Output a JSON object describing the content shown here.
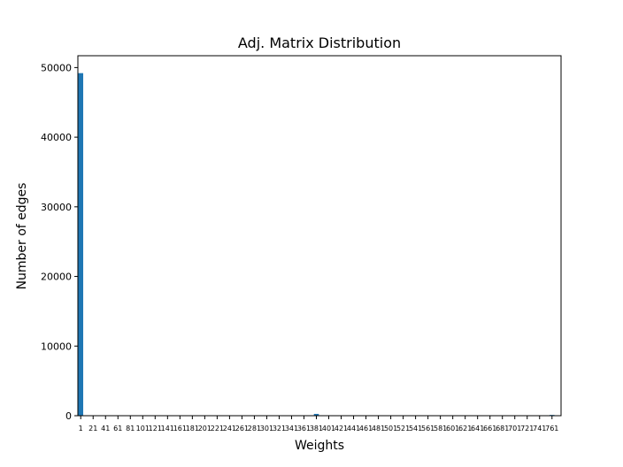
{
  "chart_data": {
    "type": "bar",
    "title": "Adj. Matrix Distribution",
    "xlabel": "Weights",
    "ylabel": "Number of edges",
    "ylim": [
      0,
      51700
    ],
    "xlim": [
      -3.6,
      775.6
    ],
    "yticks": [
      0,
      10000,
      20000,
      30000,
      40000,
      50000
    ],
    "xticks": [
      1,
      21,
      41,
      61,
      81,
      101,
      121,
      141,
      161,
      181,
      201,
      221,
      241,
      261,
      281,
      301,
      321,
      341,
      361,
      381,
      401,
      421,
      441,
      461,
      481,
      501,
      521,
      541,
      561,
      581,
      601,
      621,
      641,
      661,
      681,
      701,
      721,
      741,
      761
    ],
    "bar_width": 8,
    "x": [
      1,
      21,
      41,
      61,
      81,
      101,
      121,
      141,
      161,
      181,
      201,
      221,
      241,
      261,
      281,
      301,
      321,
      341,
      361,
      381,
      401,
      421,
      441,
      461,
      481,
      501,
      521,
      541,
      561,
      581,
      601,
      621,
      641,
      661,
      681,
      701,
      721,
      741,
      761
    ],
    "values": [
      49200,
      0,
      0,
      0,
      0,
      0,
      0,
      0,
      0,
      0,
      0,
      0,
      0,
      0,
      0,
      0,
      0,
      0,
      0,
      260,
      0,
      0,
      0,
      0,
      0,
      0,
      0,
      0,
      0,
      0,
      0,
      0,
      0,
      0,
      0,
      0,
      0,
      0,
      110
    ],
    "grid": false,
    "colors": {
      "bar": "#1f77b4",
      "axes": "#000000"
    }
  }
}
